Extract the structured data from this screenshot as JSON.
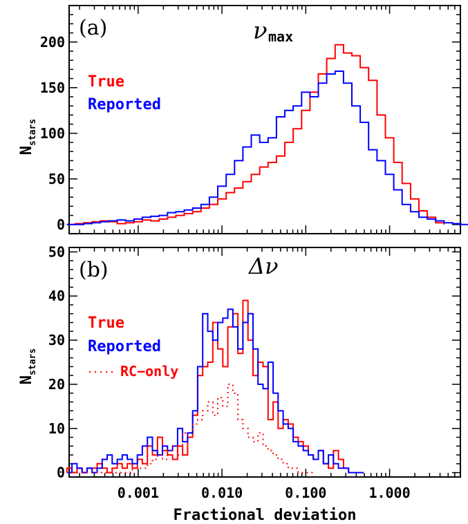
{
  "chart_data": {
    "xlabel": "Fractional deviation",
    "xscale": "log",
    "xlim": [
      0.00015,
      7.0
    ],
    "x_tick_labels": [
      "0.001",
      "0.010",
      "0.100",
      "1.000"
    ],
    "x_tick_values": [
      0.001,
      0.01,
      0.1,
      1.0
    ],
    "panels": [
      {
        "type": "histogram",
        "panel_label": "(a)",
        "title_greek": "ν",
        "title_sub": "max",
        "ylabel": "N",
        "ylabel_sub": "stars",
        "ylim": [
          -10,
          240
        ],
        "y_ticks": [
          0,
          50,
          100,
          150,
          200
        ],
        "legend_position": "top-left",
        "bin_log_edges": [
          -3.85,
          2.95,
          0.1
        ],
        "series": [
          {
            "name": "True",
            "color": "#ff0000",
            "style": "solid",
            "values": [
              0,
              1,
              2,
              3,
              4,
              3,
              1,
              2,
              3,
              5,
              4,
              6,
              8,
              10,
              12,
              14,
              18,
              22,
              28,
              35,
              40,
              47,
              55,
              63,
              68,
              75,
              90,
              105,
              125,
              145,
              165,
              182,
              197,
              188,
              185,
              172,
              158,
              120,
              95,
              68,
              45,
              28,
              15,
              8,
              2
            ]
          },
          {
            "name": "Reported",
            "color": "#0000ff",
            "style": "solid",
            "values": [
              0,
              0,
              1,
              2,
              3,
              4,
              5,
              4,
              6,
              8,
              9,
              10,
              13,
              14,
              16,
              18,
              22,
              30,
              42,
              55,
              70,
              85,
              98,
              90,
              95,
              118,
              125,
              130,
              145,
              140,
              155,
              165,
              168,
              155,
              130,
              112,
              82,
              70,
              55,
              38,
              22,
              14,
              8,
              6,
              4,
              2,
              1,
              0,
              0,
              0
            ]
          }
        ]
      },
      {
        "type": "histogram",
        "panel_label": "(b)",
        "title_greek": "Δν",
        "ylabel": "N",
        "ylabel_sub": "stars",
        "ylim": [
          -1,
          51
        ],
        "y_ticks": [
          0,
          10,
          20,
          30,
          40,
          50
        ],
        "legend_position": "top-left",
        "bin_log_edges": [
          -3.85,
          2.95,
          0.06
        ],
        "series": [
          {
            "name": "True",
            "color": "#ff0000",
            "style": "solid",
            "values": [
              1,
              0,
              1,
              0,
              1,
              1,
              2,
              1,
              0,
              1,
              2,
              1,
              2,
              1,
              3,
              2,
              6,
              4,
              8,
              5,
              4,
              3,
              6,
              4,
              8,
              13,
              22,
              24,
              25,
              34,
              28,
              24,
              33,
              36,
              27,
              39,
              30,
              22,
              25,
              24,
              12,
              16,
              10,
              12,
              11,
              8,
              7,
              6,
              4,
              3,
              5,
              2,
              1,
              5,
              3,
              1
            ]
          },
          {
            "name": "Reported",
            "color": "#0000ff",
            "style": "solid",
            "values": [
              0,
              2,
              1,
              0,
              1,
              0,
              1,
              3,
              4,
              2,
              3,
              4,
              3,
              2,
              4,
              6,
              8,
              5,
              4,
              6,
              5,
              6,
              10,
              7,
              9,
              14,
              24,
              36,
              32,
              30,
              34,
              35,
              37,
              33,
              28,
              34,
              36,
              28,
              20,
              19,
              25,
              18,
              14,
              11,
              10,
              7,
              6,
              5,
              4,
              3,
              5,
              2,
              4,
              2,
              1,
              1,
              0,
              0,
              0
            ]
          },
          {
            "name": "RC−only",
            "color": "#ff0000",
            "style": "dotted",
            "values": [
              0,
              0,
              0,
              0,
              0,
              0,
              0,
              0,
              0,
              0,
              0,
              0,
              0,
              1,
              1,
              1,
              2,
              3,
              4,
              3,
              5,
              6,
              4,
              9,
              8,
              11,
              12,
              14,
              16,
              13,
              17,
              15,
              20,
              18,
              12,
              10,
              8,
              7,
              9,
              6,
              5,
              4,
              3,
              2,
              1,
              1,
              0,
              0,
              0
            ]
          }
        ]
      }
    ]
  }
}
